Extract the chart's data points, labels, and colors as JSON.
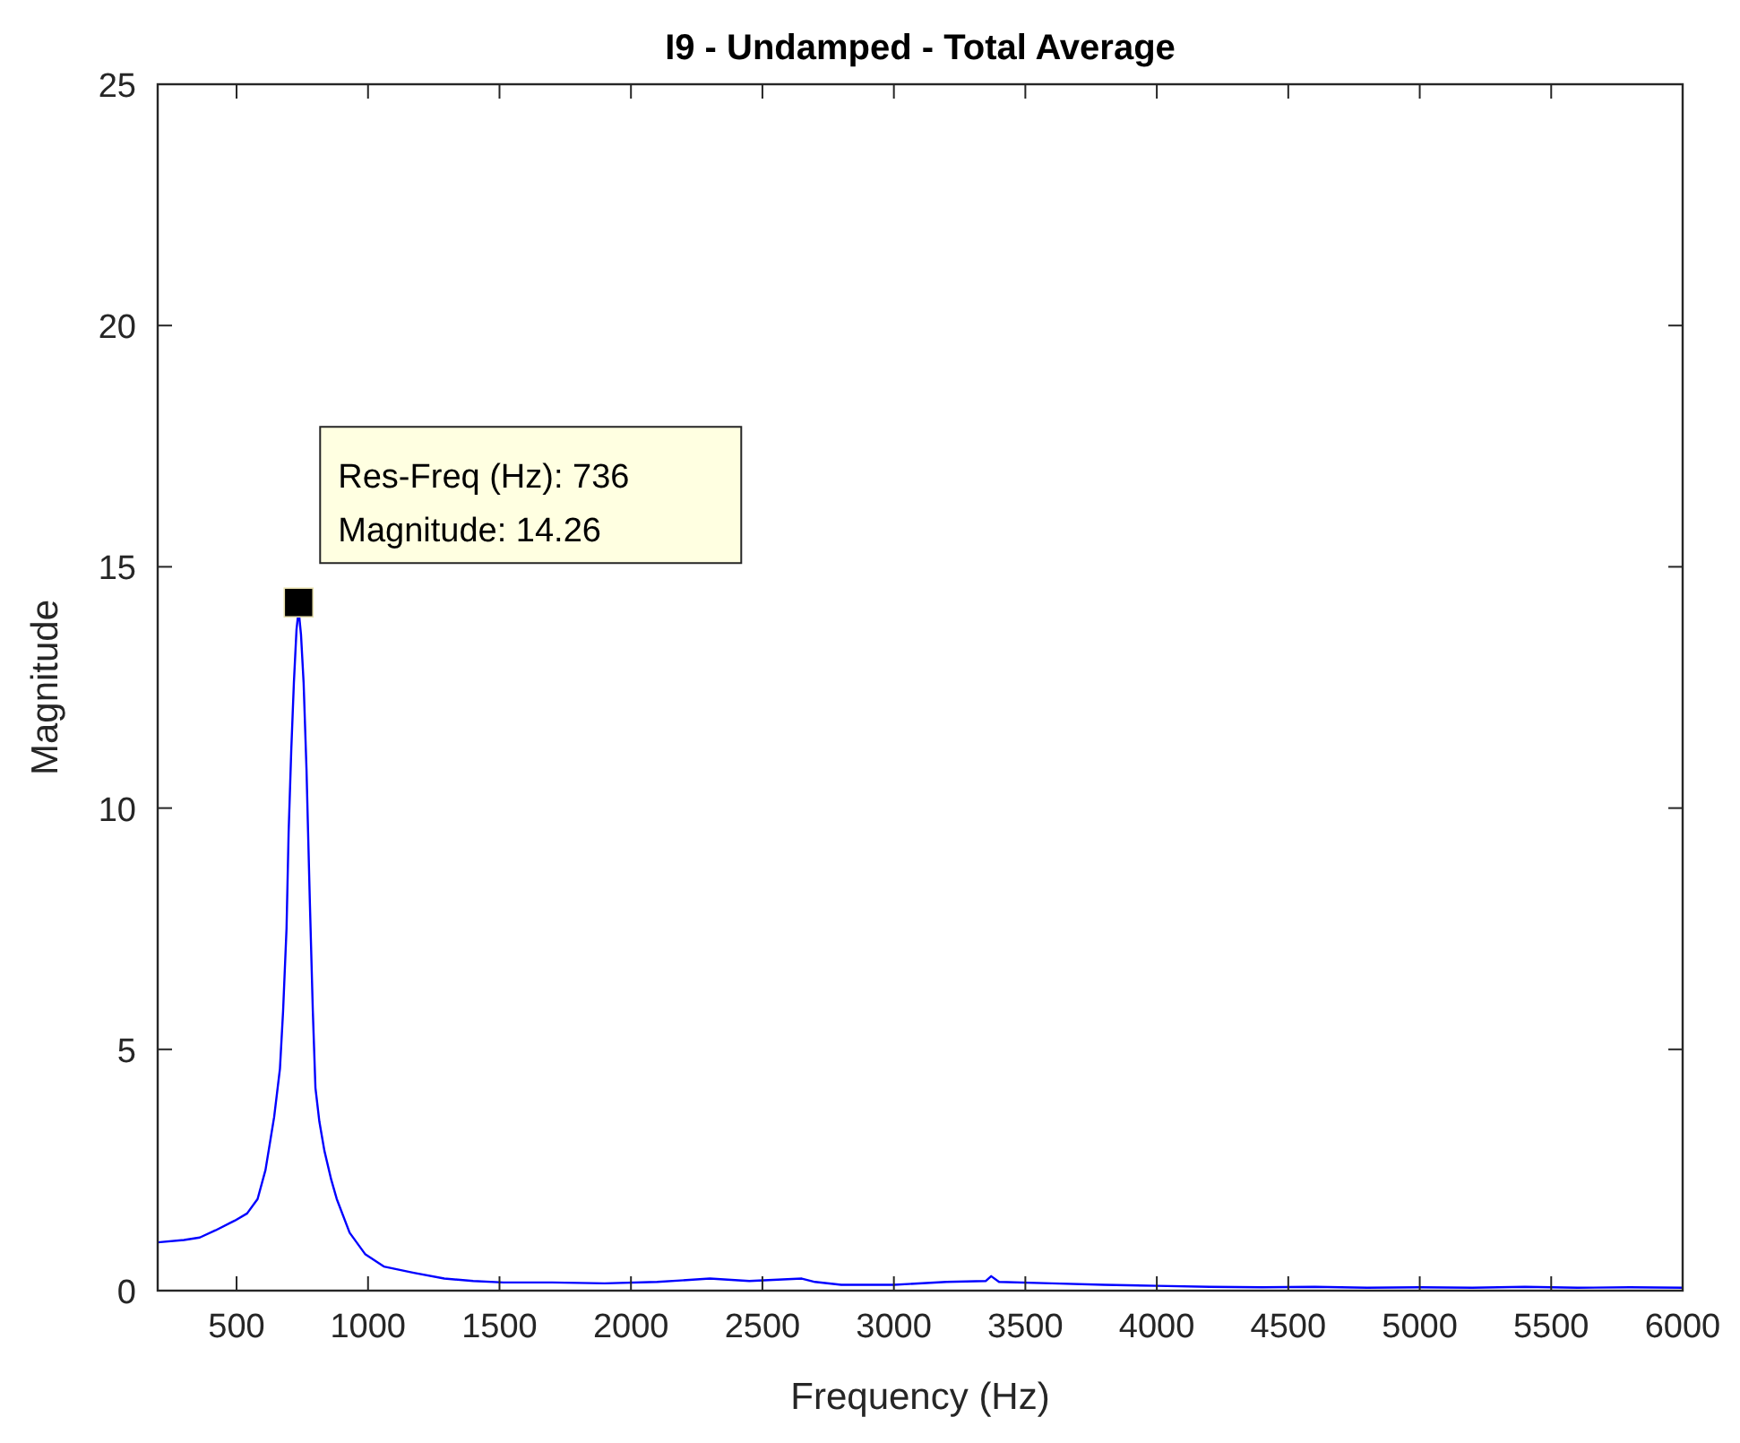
{
  "chart_data": {
    "type": "line",
    "title": "I9 - Undamped - Total Average",
    "xlabel": "Frequency (Hz)",
    "ylabel": "Magnitude",
    "xlim": [
      200,
      6000
    ],
    "ylim": [
      0,
      25
    ],
    "xticks": [
      500,
      1000,
      1500,
      2000,
      2500,
      3000,
      3500,
      4000,
      4500,
      5000,
      5500,
      6000
    ],
    "yticks": [
      0,
      5,
      10,
      15,
      20,
      25
    ],
    "grid": false,
    "series": [
      {
        "color": "#0000ff",
        "marker": "none",
        "x": [
          200,
          300,
          360,
          420,
          493,
          540,
          580,
          610,
          643,
          665,
          677,
          690,
          698,
          708,
          718,
          728,
          736,
          745,
          755,
          766,
          772,
          779,
          790,
          800,
          815,
          834,
          860,
          881,
          930,
          990,
          1060,
          1174,
          1290,
          1400,
          1515,
          1700,
          1900,
          2100,
          2300,
          2450,
          2650,
          2700,
          2800,
          3000,
          3200,
          3350,
          3370,
          3400,
          3600,
          3800,
          4000,
          4200,
          4400,
          4600,
          4800,
          5000,
          5200,
          5400,
          5600,
          5800,
          6000
        ],
        "values": [
          1.0,
          1.05,
          1.1,
          1.25,
          1.45,
          1.6,
          1.9,
          2.5,
          3.6,
          4.6,
          5.8,
          7.5,
          9.5,
          11.2,
          12.6,
          13.7,
          14.1,
          13.6,
          12.6,
          10.8,
          9.5,
          8.0,
          5.8,
          4.2,
          3.5,
          2.9,
          2.3,
          1.9,
          1.2,
          0.75,
          0.5,
          0.37,
          0.25,
          0.2,
          0.17,
          0.17,
          0.15,
          0.18,
          0.25,
          0.2,
          0.25,
          0.18,
          0.12,
          0.12,
          0.18,
          0.2,
          0.3,
          0.18,
          0.15,
          0.12,
          0.1,
          0.08,
          0.07,
          0.08,
          0.06,
          0.07,
          0.06,
          0.08,
          0.06,
          0.07,
          0.06
        ]
      },
      {
        "type": "scatter",
        "color": "#000000",
        "marker": "square",
        "x": [
          736
        ],
        "values": [
          14.26
        ]
      }
    ],
    "annotations": [
      {
        "text": "Res-Freq (Hz): 736\nMagnitude: 14.26",
        "x": 736,
        "y": 14.26
      }
    ]
  }
}
